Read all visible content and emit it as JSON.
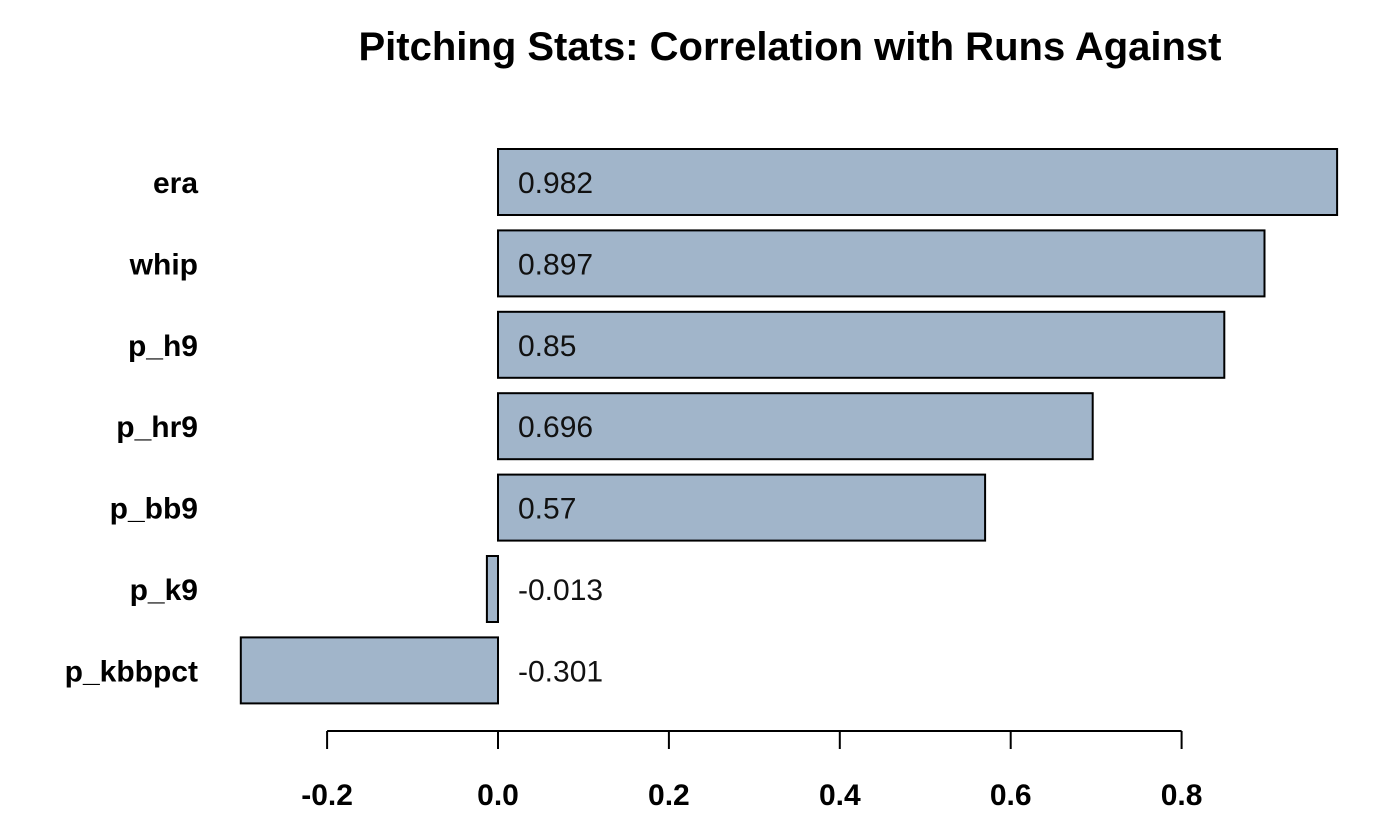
{
  "chart_data": {
    "type": "bar",
    "orientation": "horizontal",
    "title": "Pitching Stats:  Correlation with Runs Against",
    "xlabel": "",
    "ylabel": "",
    "categories": [
      "era",
      "whip",
      "p_h9",
      "p_hr9",
      "p_bb9",
      "p_k9",
      "p_kbbpct"
    ],
    "values": [
      0.982,
      0.897,
      0.85,
      0.696,
      0.57,
      -0.013,
      -0.301
    ],
    "value_labels": [
      "0.982",
      "0.897",
      "0.85",
      "0.696",
      "0.57",
      "-0.013",
      "-0.301"
    ],
    "x_ticks": [
      -0.2,
      0.0,
      0.2,
      0.4,
      0.6,
      0.8
    ],
    "x_tick_labels": [
      "-0.2",
      "0.0",
      "0.2",
      "0.4",
      "0.6",
      "0.8"
    ],
    "xlim": [
      -0.2,
      0.8
    ],
    "grid": false,
    "legend": "none",
    "colors": {
      "bar_fill": "#a1b5ca",
      "bar_stroke": "#000000"
    }
  }
}
